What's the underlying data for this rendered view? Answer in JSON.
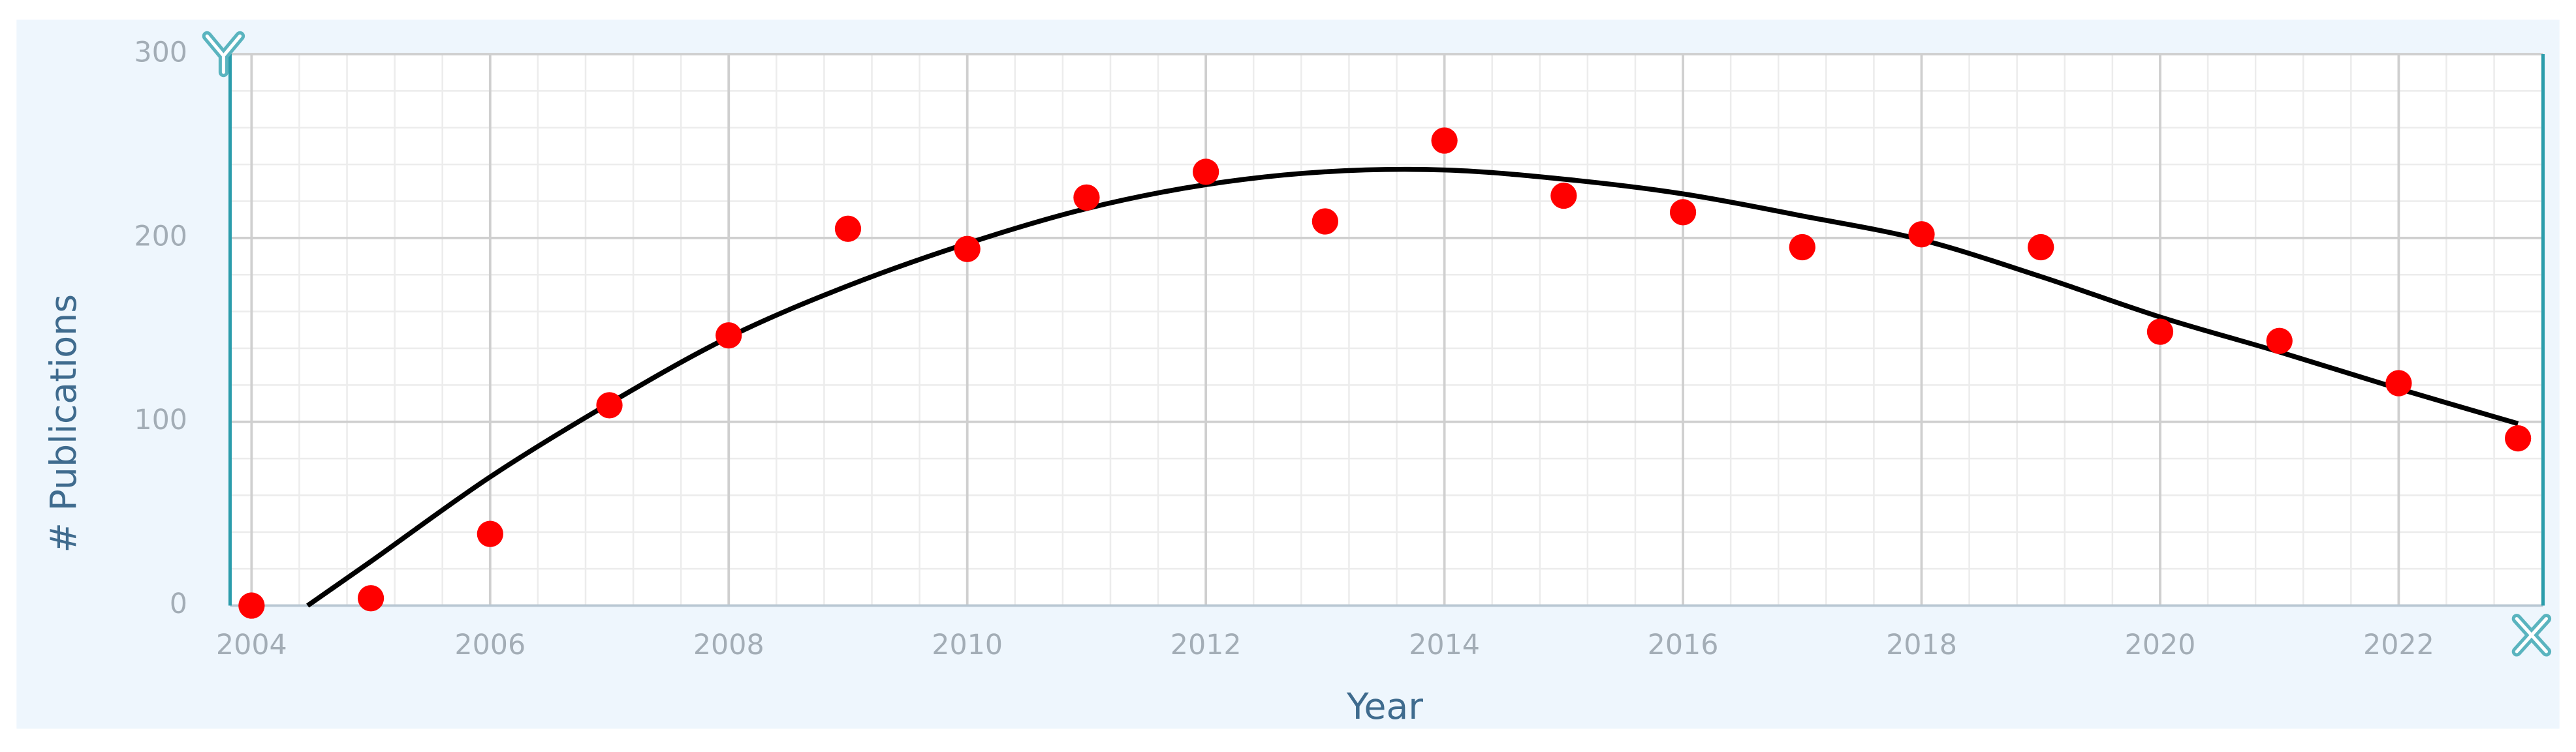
{
  "chart_data": {
    "type": "scatter",
    "x_label": "Year",
    "y_label": "# Publications",
    "x": [
      2004,
      2005,
      2006,
      2007,
      2008,
      2009,
      2010,
      2011,
      2012,
      2013,
      2014,
      2015,
      2016,
      2017,
      2018,
      2019,
      2020,
      2021,
      2022,
      2023
    ],
    "values": [
      0,
      4,
      39,
      109,
      147,
      205,
      194,
      222,
      236,
      209,
      253,
      223,
      214,
      195,
      202,
      195,
      149,
      144,
      121,
      91
    ],
    "color": "#ff0000",
    "trend": {
      "color": "#000000",
      "x": [
        2004.47,
        2005,
        2006,
        2007,
        2008,
        2009,
        2010,
        2011,
        2012,
        2013,
        2014,
        2015,
        2016,
        2017,
        2018,
        2019,
        2020,
        2021,
        2022,
        2023
      ],
      "values": [
        0,
        24,
        70,
        110,
        146,
        174,
        197,
        216,
        229,
        236,
        237,
        232,
        224,
        212,
        199,
        179,
        157,
        138,
        118,
        99
      ]
    },
    "xlim": [
      2003.82,
      2023.21
    ],
    "ylim": [
      0,
      300
    ],
    "xticks": [
      2004,
      2006,
      2008,
      2010,
      2012,
      2014,
      2016,
      2018,
      2020,
      2022
    ],
    "yticks": [
      0,
      100,
      200,
      300
    ],
    "grid": true
  }
}
